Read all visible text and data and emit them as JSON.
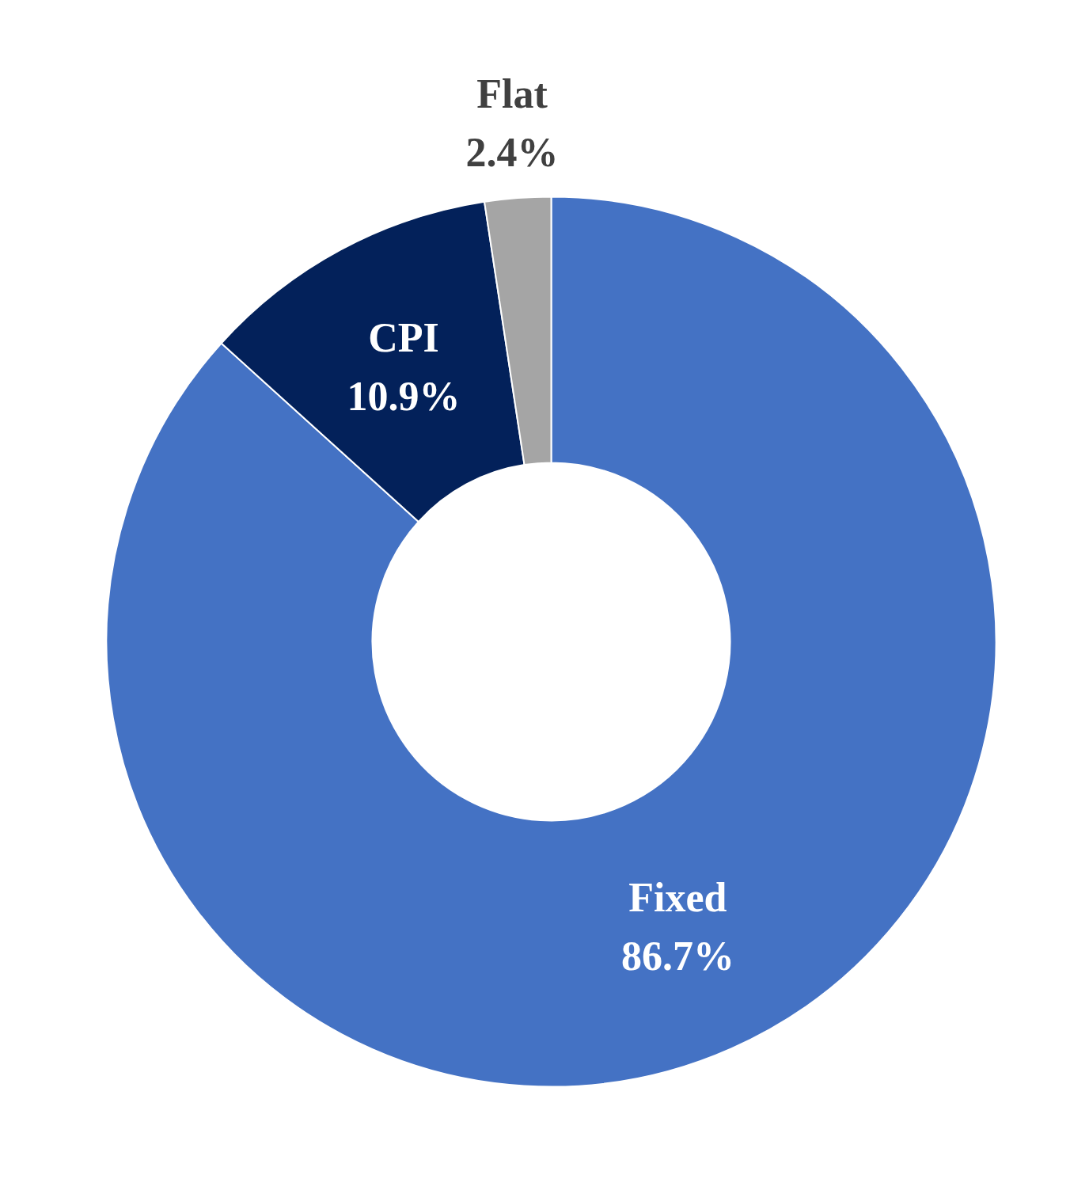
{
  "chart_data": {
    "type": "donut",
    "categories": [
      "Fixed",
      "CPI",
      "Flat"
    ],
    "values": [
      86.7,
      10.9,
      2.4
    ],
    "colors": [
      "#4472c4",
      "#03215a",
      "#a5a5a5"
    ],
    "value_labels": [
      "86.7%",
      "10.9%",
      "2.4%"
    ]
  }
}
